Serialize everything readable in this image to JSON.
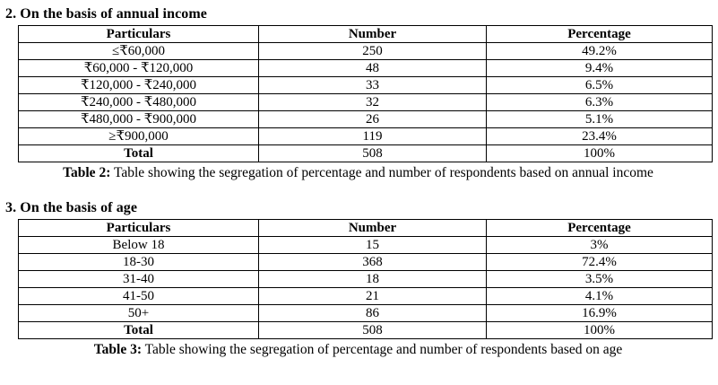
{
  "section_income": {
    "heading": "2. On the basis of annual income",
    "table": {
      "headers": [
        "Particulars",
        "Number",
        "Percentage"
      ],
      "rows": [
        [
          "≤₹60,000",
          "250",
          "49.2%"
        ],
        [
          "₹60,000 - ₹120,000",
          "48",
          "9.4%"
        ],
        [
          "₹120,000 - ₹240,000",
          "33",
          "6.5%"
        ],
        [
          "₹240,000 - ₹480,000",
          "32",
          "6.3%"
        ],
        [
          "₹480,000 - ₹900,000",
          "26",
          "5.1%"
        ],
        [
          "≥₹900,000",
          "119",
          "23.4%"
        ]
      ],
      "total_row": [
        "Total",
        "508",
        "100%"
      ]
    },
    "caption_label": "Table 2:",
    "caption_text": "Table showing the segregation of percentage and number of respondents based on annual income"
  },
  "section_age": {
    "heading": "3. On the basis of age",
    "table": {
      "headers": [
        "Particulars",
        "Number",
        "Percentage"
      ],
      "rows": [
        [
          "Below 18",
          "15",
          "3%"
        ],
        [
          "18-30",
          "368",
          "72.4%"
        ],
        [
          "31-40",
          "18",
          "3.5%"
        ],
        [
          "41-50",
          "21",
          "4.1%"
        ],
        [
          "50+",
          "86",
          "16.9%"
        ]
      ],
      "total_row": [
        "Total",
        "508",
        "100%"
      ]
    },
    "caption_label": "Table 3:",
    "caption_text": "Table showing the segregation of percentage and number of respondents based on age"
  },
  "colors": {
    "text": "#000000",
    "background": "#ffffff",
    "table_border": "#000000"
  }
}
